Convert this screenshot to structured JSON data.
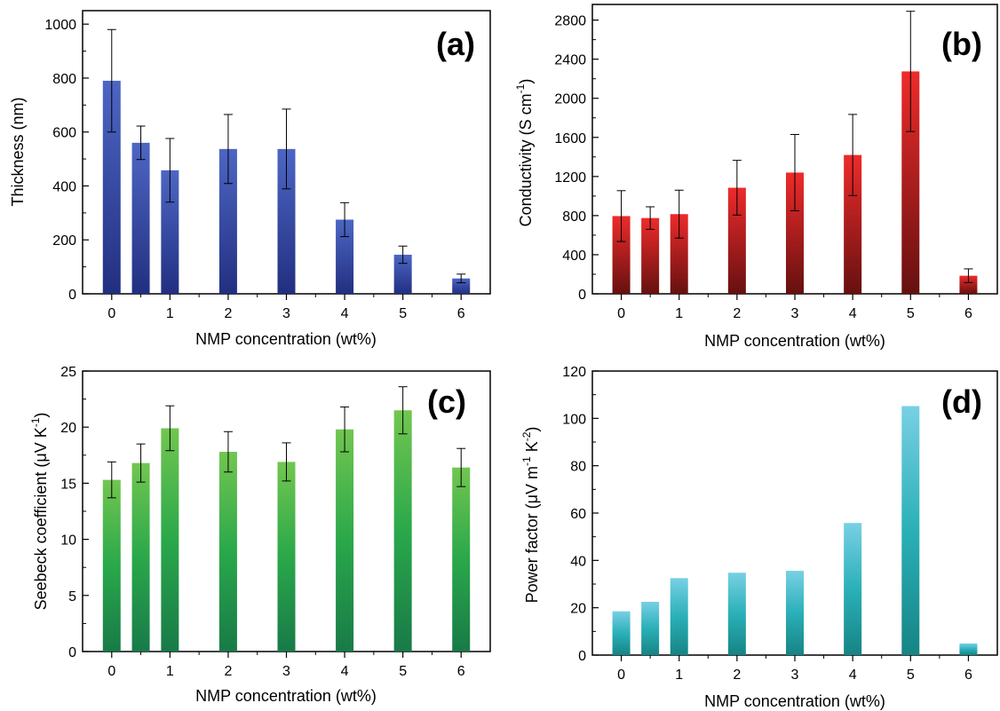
{
  "chart_data": [
    {
      "type": "bar",
      "panel_label": "(a)",
      "xlabel": "NMP concentration (wt%)",
      "ylabel": "Thickness (nm)",
      "xlim": [
        -0.5,
        6.5
      ],
      "ylim": [
        0,
        1050
      ],
      "xticks": [
        0,
        1,
        2,
        3,
        4,
        5,
        6
      ],
      "yticks": [
        0,
        200,
        400,
        600,
        800,
        1000
      ],
      "x": [
        0,
        0.5,
        1,
        2,
        3,
        4,
        5,
        6
      ],
      "values": [
        790,
        560,
        458,
        537,
        537,
        275,
        145,
        57
      ],
      "errors": [
        190,
        62,
        118,
        128,
        148,
        63,
        32,
        16
      ],
      "colors": [
        "#2e3f96",
        "#4a62c0"
      ]
    },
    {
      "type": "bar",
      "panel_label": "(b)",
      "xlabel": "NMP concentration (wt%)",
      "ylabel_parts": [
        "Conductivity (S cm",
        "-1",
        ")"
      ],
      "xlim": [
        -0.5,
        6.5
      ],
      "ylim": [
        0,
        2960
      ],
      "xticks": [
        0,
        1,
        2,
        3,
        4,
        5,
        6
      ],
      "yticks": [
        0,
        400,
        800,
        1200,
        1600,
        2000,
        2400,
        2800
      ],
      "x": [
        0,
        0.5,
        1,
        2,
        3,
        4,
        5,
        6
      ],
      "values": [
        795,
        775,
        815,
        1085,
        1240,
        1420,
        2275,
        185
      ],
      "errors": [
        260,
        115,
        245,
        280,
        390,
        415,
        615,
        70
      ],
      "colors": [
        "#6e1010",
        "#e62a2a"
      ]
    },
    {
      "type": "bar",
      "panel_label": "(c)",
      "xlabel": "NMP concentration (wt%)",
      "ylabel_parts": [
        "Seebeck coefficient (μV K",
        "-1",
        ")"
      ],
      "xlim": [
        -0.5,
        6.5
      ],
      "ylim": [
        0,
        25
      ],
      "xticks": [
        0,
        1,
        2,
        3,
        4,
        5,
        6
      ],
      "yticks": [
        0,
        5,
        10,
        15,
        20,
        25
      ],
      "x": [
        0,
        0.5,
        1,
        2,
        3,
        4,
        5,
        6
      ],
      "values": [
        15.3,
        16.8,
        19.9,
        17.8,
        16.9,
        19.8,
        21.5,
        16.4
      ],
      "errors": [
        1.6,
        1.7,
        2.0,
        1.8,
        1.7,
        2.0,
        2.1,
        1.7
      ],
      "colors": [
        "#1a8048",
        "#6cc24a"
      ]
    },
    {
      "type": "bar",
      "panel_label": "(d)",
      "xlabel": "NMP concentration (wt%)",
      "ylabel_parts": [
        "Power factor (μV m",
        "-1",
        " K",
        "-2",
        ")"
      ],
      "xlim": [
        -0.5,
        6.5
      ],
      "ylim": [
        0,
        120
      ],
      "xticks": [
        0,
        1,
        2,
        3,
        4,
        5,
        6
      ],
      "yticks": [
        0,
        20,
        40,
        60,
        80,
        100,
        120
      ],
      "x": [
        0,
        0.5,
        1,
        2,
        3,
        4,
        5,
        6
      ],
      "values": [
        18.5,
        22.5,
        32.5,
        34.8,
        35.6,
        55.8,
        105.2,
        4.9
      ],
      "errors": [],
      "colors": [
        "#1a8c8c",
        "#6fcbe0"
      ]
    }
  ]
}
